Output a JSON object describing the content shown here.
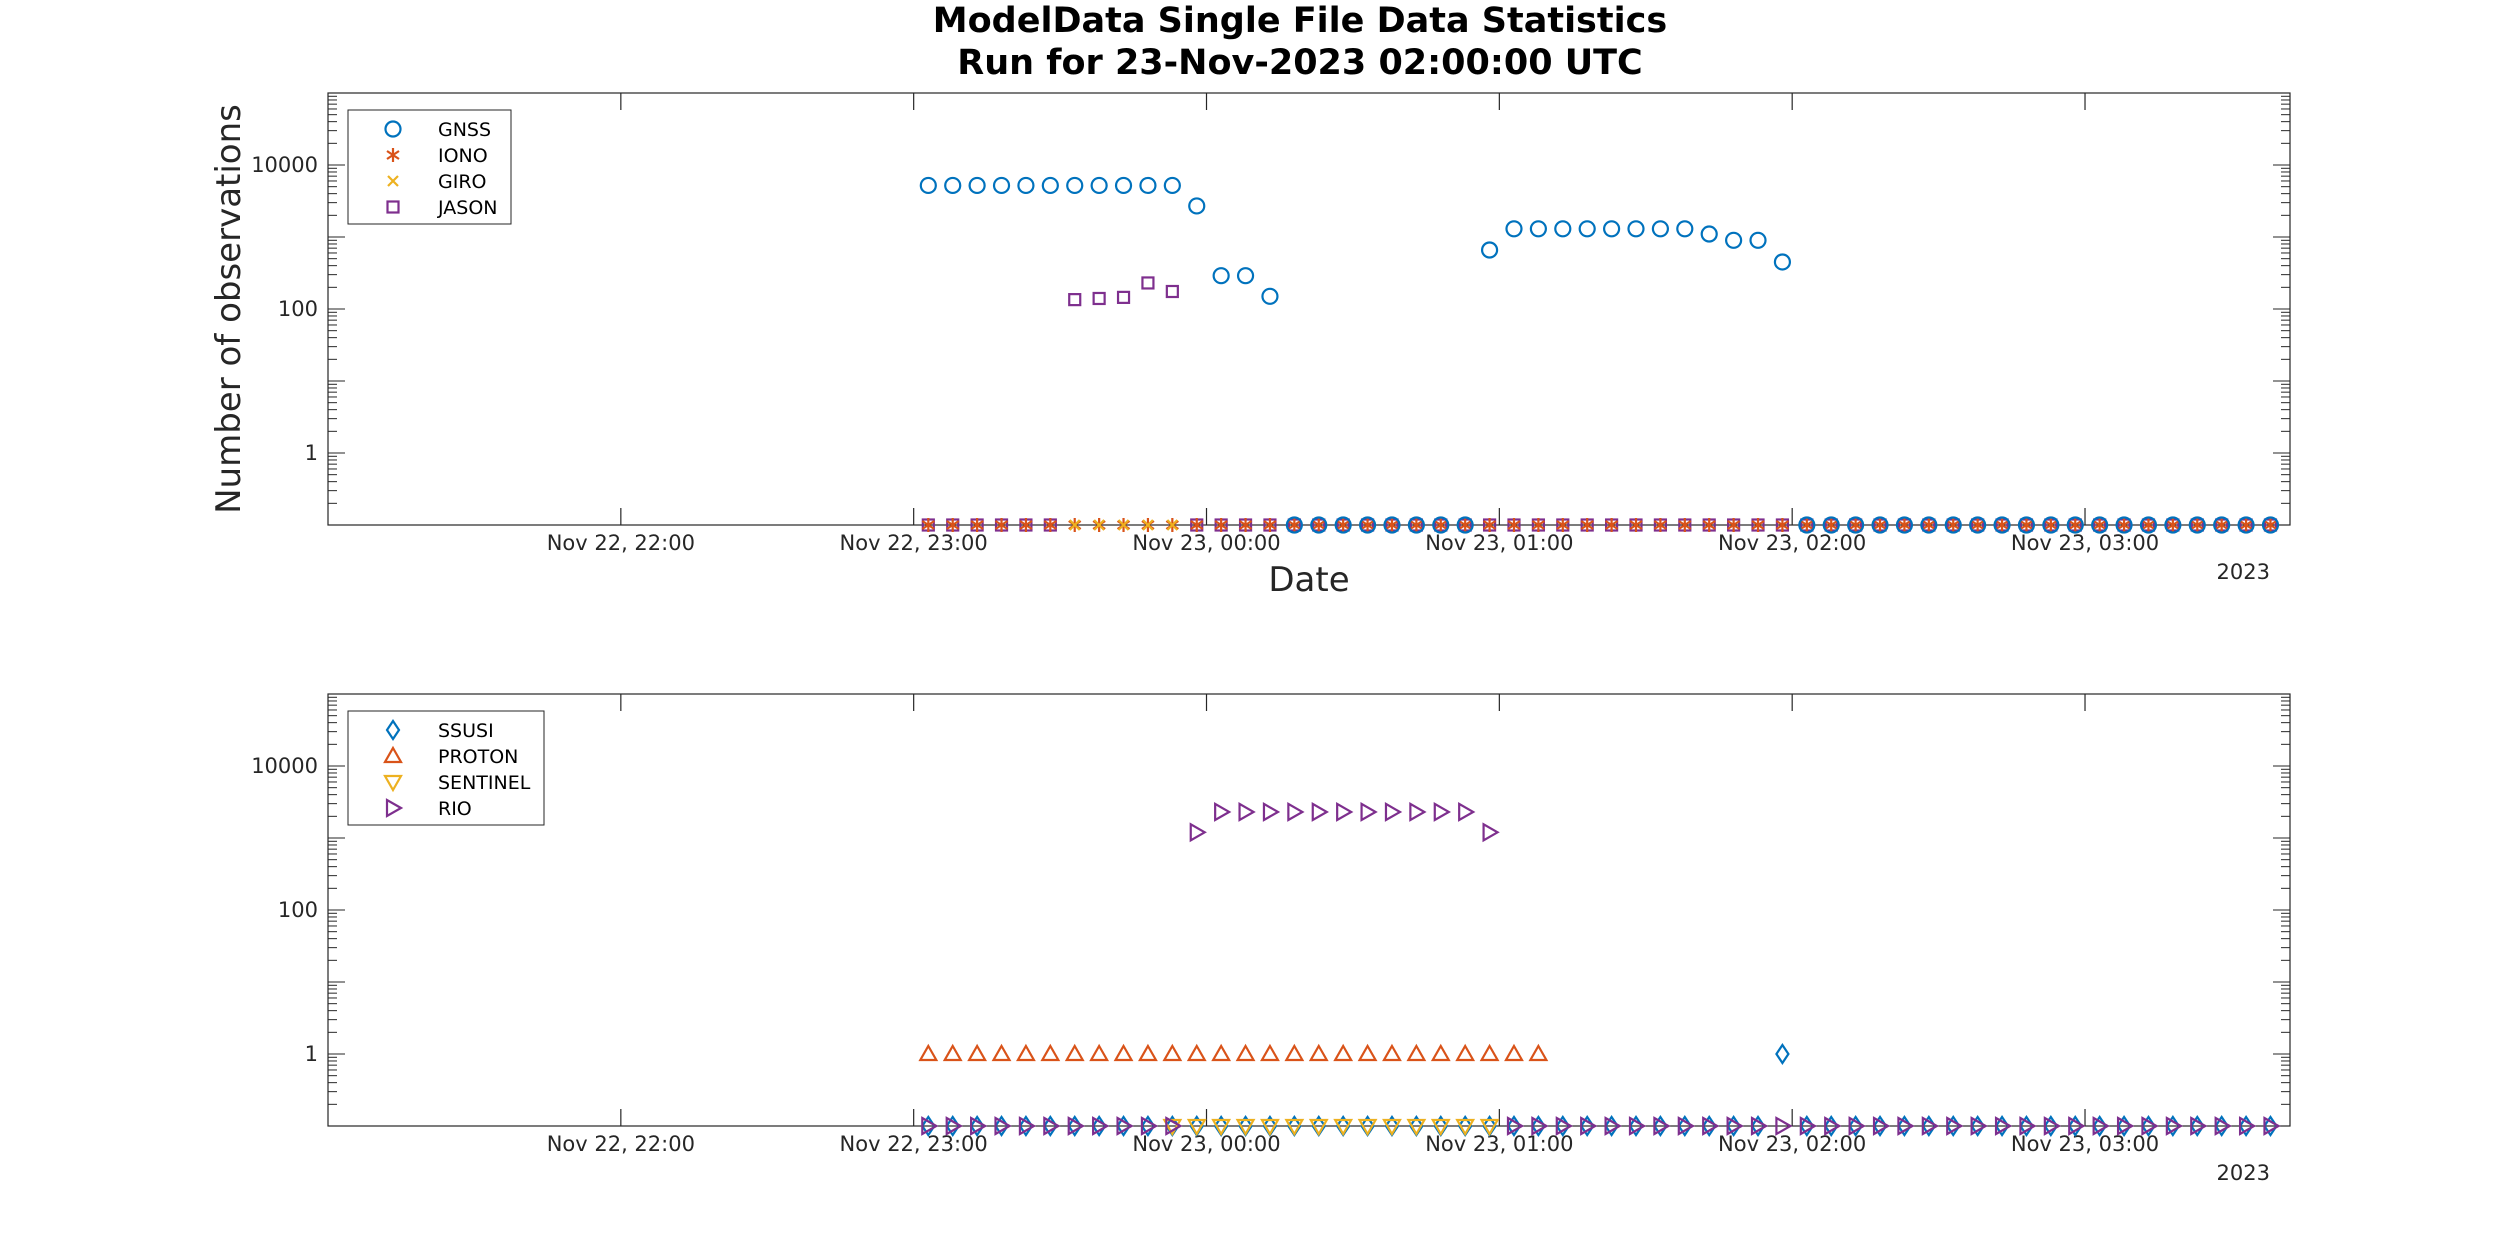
{
  "figure": {
    "title_line1": "ModelData Single File Data Statistics",
    "title_line2": "Run for 23-Nov-2023 02:00:00 UTC"
  },
  "colors": {
    "blue": "#0072BD",
    "orange": "#D95319",
    "yellow": "#EDB120",
    "purple": "#7E2F8E",
    "axis": "#262626"
  },
  "chart_data": [
    {
      "type": "scatter",
      "ylabel": "Number of observations",
      "xlabel": "Date",
      "y_scale": "log",
      "ylim": [
        0.1,
        100000
      ],
      "xlim": [
        "2023-11-22 21:00",
        "2023-11-23 03:42"
      ],
      "x_ticks": [
        "Nov 22, 22:00",
        "Nov 22, 23:00",
        "Nov 23, 00:00",
        "Nov 23, 01:00",
        "Nov 23, 02:00",
        "Nov 23, 03:00"
      ],
      "x_tick_year": "2023",
      "y_ticks": [
        "1",
        "100",
        "10000"
      ],
      "legend_position": "top-left",
      "series": [
        {
          "name": "GNSS",
          "marker": "circle",
          "color": "#0072BD",
          "x": [
            "2023-11-22 23:03",
            "2023-11-22 23:08",
            "2023-11-22 23:13",
            "2023-11-22 23:18",
            "2023-11-22 23:23",
            "2023-11-22 23:28",
            "2023-11-22 23:33",
            "2023-11-22 23:38",
            "2023-11-22 23:43",
            "2023-11-22 23:48",
            "2023-11-22 23:53",
            "2023-11-22 23:58",
            "2023-11-23 00:03",
            "2023-11-23 00:08",
            "2023-11-23 00:13",
            "2023-11-23 00:58",
            "2023-11-23 01:03",
            "2023-11-23 01:08",
            "2023-11-23 01:13",
            "2023-11-23 01:18",
            "2023-11-23 01:23",
            "2023-11-23 01:28",
            "2023-11-23 01:33",
            "2023-11-23 01:38",
            "2023-11-23 01:43",
            "2023-11-23 01:48",
            "2023-11-23 01:53",
            "2023-11-23 01:58"
          ],
          "y": [
            5200,
            5200,
            5200,
            5200,
            5200,
            5200,
            5200,
            5200,
            5200,
            5200,
            5200,
            2700,
            290,
            290,
            150,
            660,
            1300,
            1300,
            1300,
            1300,
            1300,
            1300,
            1300,
            1300,
            1100,
            900,
            900,
            450
          ]
        },
        {
          "name": "IONO",
          "marker": "asterisk",
          "color": "#D95319",
          "x": [],
          "y": []
        },
        {
          "name": "GIRO",
          "marker": "x",
          "color": "#EDB120",
          "x": [],
          "y": []
        },
        {
          "name": "JASON",
          "marker": "square",
          "color": "#7E2F8E",
          "x": [
            "2023-11-22 23:33",
            "2023-11-22 23:38",
            "2023-11-22 23:43",
            "2023-11-22 23:48",
            "2023-11-22 23:53"
          ],
          "y": [
            135,
            140,
            145,
            230,
            175
          ]
        }
      ],
      "zero_rows": [
        {
          "marker": "square",
          "color": "#7E2F8E",
          "x_start": "2023-11-22 23:03",
          "x_end": "2023-11-23 03:38",
          "skip": [
            "2023-11-22 23:33",
            "2023-11-22 23:38",
            "2023-11-22 23:43",
            "2023-11-22 23:48",
            "2023-11-22 23:53"
          ]
        },
        {
          "marker": "asterisk",
          "color": "#D95319",
          "x_start": "2023-11-22 23:03",
          "x_end": "2023-11-23 03:38"
        },
        {
          "marker": "x",
          "color": "#EDB120",
          "x_start": "2023-11-22 23:33",
          "x_end": "2023-11-22 23:53"
        },
        {
          "marker": "circle",
          "color": "#0072BD",
          "x_start": "2023-11-23 00:18",
          "x_end": "2023-11-23 00:53"
        },
        {
          "marker": "circle",
          "color": "#0072BD",
          "x_start": "2023-11-23 02:03",
          "x_end": "2023-11-23 03:38"
        }
      ]
    },
    {
      "type": "scatter",
      "ylabel": "",
      "xlabel": "",
      "y_scale": "log",
      "ylim": [
        0.1,
        100000
      ],
      "xlim": [
        "2023-11-22 21:00",
        "2023-11-23 03:42"
      ],
      "x_ticks": [
        "Nov 22, 22:00",
        "Nov 22, 23:00",
        "Nov 23, 00:00",
        "Nov 23, 01:00",
        "Nov 23, 02:00",
        "Nov 23, 03:00"
      ],
      "x_tick_year": "2023",
      "y_ticks": [
        "1",
        "100",
        "10000"
      ],
      "legend_position": "top-left",
      "series": [
        {
          "name": "SSUSI",
          "marker": "diamond",
          "color": "#0072BD",
          "x": [
            "2023-11-23 01:58"
          ],
          "y": [
            1
          ]
        },
        {
          "name": "PROTON",
          "marker": "triangle-up",
          "color": "#D95319",
          "x": [
            "2023-11-22 23:03",
            "2023-11-22 23:08",
            "2023-11-22 23:13",
            "2023-11-22 23:18",
            "2023-11-22 23:23",
            "2023-11-22 23:28",
            "2023-11-22 23:33",
            "2023-11-22 23:38",
            "2023-11-22 23:43",
            "2023-11-22 23:48",
            "2023-11-22 23:53",
            "2023-11-22 23:58",
            "2023-11-23 00:03",
            "2023-11-23 00:08",
            "2023-11-23 00:13",
            "2023-11-23 00:18",
            "2023-11-23 00:23",
            "2023-11-23 00:28",
            "2023-11-23 00:33",
            "2023-11-23 00:38",
            "2023-11-23 00:43",
            "2023-11-23 00:48",
            "2023-11-23 00:53",
            "2023-11-23 00:58",
            "2023-11-23 01:03",
            "2023-11-23 01:08"
          ],
          "y": [
            1,
            1,
            1,
            1,
            1,
            1,
            1,
            1,
            1,
            1,
            1,
            1,
            1,
            1,
            1,
            1,
            1,
            1,
            1,
            1,
            1,
            1,
            1,
            1,
            1,
            1
          ]
        },
        {
          "name": "SENTINEL",
          "marker": "triangle-down",
          "color": "#EDB120",
          "x": [],
          "y": []
        },
        {
          "name": "RIO",
          "marker": "triangle-right",
          "color": "#7E2F8E",
          "x": [
            "2023-11-22 23:58",
            "2023-11-23 00:03",
            "2023-11-23 00:08",
            "2023-11-23 00:13",
            "2023-11-23 00:18",
            "2023-11-23 00:23",
            "2023-11-23 00:28",
            "2023-11-23 00:33",
            "2023-11-23 00:38",
            "2023-11-23 00:43",
            "2023-11-23 00:48",
            "2023-11-23 00:53",
            "2023-11-23 00:58"
          ],
          "y": [
            1200,
            2300,
            2300,
            2300,
            2300,
            2300,
            2300,
            2300,
            2300,
            2300,
            2300,
            2300,
            1200
          ]
        }
      ],
      "zero_rows": [
        {
          "marker": "diamond",
          "color": "#0072BD",
          "x_start": "2023-11-22 23:03",
          "x_end": "2023-11-23 03:38",
          "skip": [
            "2023-11-23 01:58"
          ]
        },
        {
          "marker": "triangle-down",
          "color": "#EDB120",
          "x_start": "2023-11-22 23:53",
          "x_end": "2023-11-23 00:58"
        },
        {
          "marker": "triangle-right",
          "color": "#7E2F8E",
          "x_start": "2023-11-22 23:03",
          "x_end": "2023-11-23 03:38",
          "skip": [
            "2023-11-22 23:58",
            "2023-11-23 00:03",
            "2023-11-23 00:08",
            "2023-11-23 00:13",
            "2023-11-23 00:18",
            "2023-11-23 00:23",
            "2023-11-23 00:28",
            "2023-11-23 00:33",
            "2023-11-23 00:38",
            "2023-11-23 00:43",
            "2023-11-23 00:48",
            "2023-11-23 00:53",
            "2023-11-23 00:58"
          ]
        }
      ]
    }
  ]
}
